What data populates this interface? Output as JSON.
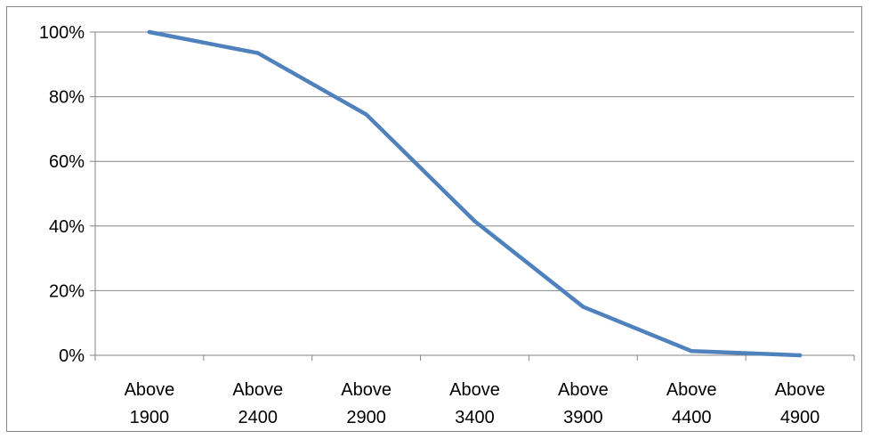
{
  "chart_data": {
    "type": "line",
    "title": "",
    "xlabel": "",
    "ylabel": "",
    "categories": [
      [
        "Above",
        "1900"
      ],
      [
        "Above",
        "2400"
      ],
      [
        "Above",
        "2900"
      ],
      [
        "Above",
        "3400"
      ],
      [
        "Above",
        "3900"
      ],
      [
        "Above",
        "4400"
      ],
      [
        "Above",
        "4900"
      ]
    ],
    "series": [
      {
        "values": [
          1.0,
          0.935,
          0.745,
          0.415,
          0.15,
          0.013,
          0.0
        ],
        "color": "#4f81bd"
      }
    ],
    "y_ticks": [
      {
        "value": 0,
        "label": "0%"
      },
      {
        "value": 0.2,
        "label": "20%"
      },
      {
        "value": 0.4,
        "label": "40%"
      },
      {
        "value": 0.6,
        "label": "60%"
      },
      {
        "value": 0.8,
        "label": "80%"
      },
      {
        "value": 1.0,
        "label": "100%"
      }
    ],
    "ylim": [
      0,
      1
    ],
    "grid": true,
    "legend": "none",
    "gridline_color": "#868686"
  }
}
